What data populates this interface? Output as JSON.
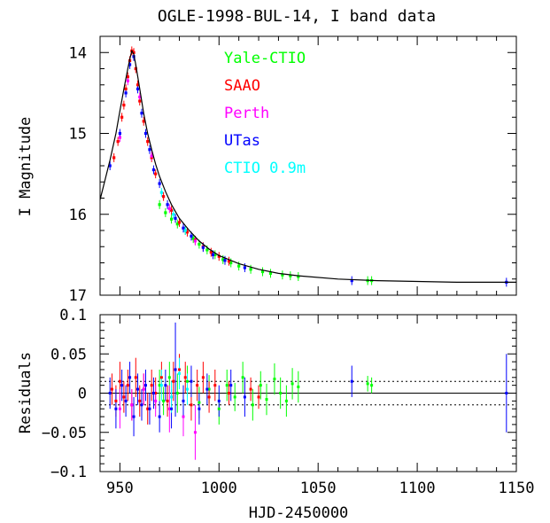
{
  "chart_data": [
    {
      "type": "scatter",
      "panel": "light curve",
      "title": "OGLE-1998-BUL-14, I band data",
      "xlabel": "",
      "ylabel": "I Magnitude",
      "xlim": [
        940,
        1150
      ],
      "ylim": [
        17,
        13.8
      ],
      "y_inverted": true,
      "x_ticks": [
        950,
        1000,
        1050,
        1100,
        1150
      ],
      "y_ticks": [
        14,
        15,
        16,
        17
      ],
      "y_tick_labels": [
        "14",
        "15",
        "16",
        "17"
      ],
      "legend_position": "top-center",
      "series": [
        {
          "name": "Yale-CTIO",
          "color": "#00ff00",
          "points": [
            [
              970,
              15.88
            ],
            [
              973,
              15.98
            ],
            [
              976,
              16.06
            ],
            [
              979,
              16.12
            ],
            [
              983,
              16.2
            ],
            [
              987,
              16.3
            ],
            [
              990,
              16.37
            ],
            [
              994,
              16.44
            ],
            [
              998,
              16.5
            ],
            [
              1002,
              16.56
            ],
            [
              1006,
              16.6
            ],
            [
              1010,
              16.64
            ],
            [
              1016,
              16.68
            ],
            [
              1022,
              16.71
            ],
            [
              1026,
              16.73
            ],
            [
              1032,
              16.75
            ],
            [
              1036,
              16.76
            ],
            [
              1040,
              16.77
            ],
            [
              1075,
              16.82
            ],
            [
              1077,
              16.82
            ]
          ]
        },
        {
          "name": "SAAO",
          "color": "#ff0000",
          "points": [
            [
              947,
              15.3
            ],
            [
              949,
              15.1
            ],
            [
              951,
              14.8
            ],
            [
              952,
              14.65
            ],
            [
              953,
              14.45
            ],
            [
              954,
              14.3
            ],
            [
              955,
              14.1
            ],
            [
              956,
              13.98
            ],
            [
              957,
              14.0
            ],
            [
              958,
              14.2
            ],
            [
              959,
              14.4
            ],
            [
              960,
              14.6
            ],
            [
              962,
              14.85
            ],
            [
              964,
              15.1
            ],
            [
              966,
              15.3
            ],
            [
              968,
              15.5
            ],
            [
              972,
              15.78
            ],
            [
              976,
              15.95
            ],
            [
              980,
              16.1
            ],
            [
              984,
              16.22
            ],
            [
              988,
              16.32
            ],
            [
              992,
              16.4
            ],
            [
              996,
              16.47
            ],
            [
              1000,
              16.52
            ],
            [
              1005,
              16.58
            ]
          ]
        },
        {
          "name": "Perth",
          "color": "#ff00ff",
          "points": [
            [
              950,
              15.05
            ],
            [
              954,
              14.35
            ],
            [
              960,
              14.55
            ],
            [
              966,
              15.28
            ],
            [
              975,
              15.93
            ],
            [
              982,
              16.17
            ],
            [
              988,
              16.33
            ]
          ]
        },
        {
          "name": "UTas",
          "color": "#0000ff",
          "points": [
            [
              945,
              15.4
            ],
            [
              950,
              15.0
            ],
            [
              953,
              14.5
            ],
            [
              955,
              14.15
            ],
            [
              957,
              14.05
            ],
            [
              959,
              14.45
            ],
            [
              961,
              14.75
            ],
            [
              963,
              15.0
            ],
            [
              965,
              15.2
            ],
            [
              967,
              15.45
            ],
            [
              970,
              15.62
            ],
            [
              974,
              15.88
            ],
            [
              978,
              16.05
            ],
            [
              982,
              16.17
            ],
            [
              986,
              16.27
            ],
            [
              992,
              16.41
            ],
            [
              997,
              16.5
            ],
            [
              1003,
              16.57
            ],
            [
              1013,
              16.66
            ],
            [
              1067,
              16.82
            ],
            [
              1145,
              16.84
            ]
          ]
        },
        {
          "name": "CTIO 0.9m",
          "color": "#00ffff",
          "points": [
            [
              971,
              15.73
            ],
            [
              977,
              16.0
            ],
            [
              983,
              16.2
            ]
          ]
        }
      ],
      "model_curve": {
        "name": "",
        "color": "#000000",
        "points": [
          [
            940,
            15.82
          ],
          [
            945,
            15.33
          ],
          [
            948,
            15.0
          ],
          [
            950,
            14.72
          ],
          [
            952,
            14.45
          ],
          [
            954,
            14.2
          ],
          [
            955,
            14.08
          ],
          [
            956,
            13.98
          ],
          [
            957,
            14.02
          ],
          [
            958,
            14.15
          ],
          [
            960,
            14.45
          ],
          [
            962,
            14.75
          ],
          [
            964,
            15.0
          ],
          [
            966,
            15.2
          ],
          [
            968,
            15.38
          ],
          [
            970,
            15.53
          ],
          [
            973,
            15.72
          ],
          [
            976,
            15.88
          ],
          [
            980,
            16.05
          ],
          [
            985,
            16.2
          ],
          [
            990,
            16.33
          ],
          [
            995,
            16.43
          ],
          [
            1000,
            16.51
          ],
          [
            1010,
            16.61
          ],
          [
            1020,
            16.68
          ],
          [
            1030,
            16.73
          ],
          [
            1040,
            16.76
          ],
          [
            1060,
            16.8
          ],
          [
            1080,
            16.82
          ],
          [
            1100,
            16.83
          ],
          [
            1120,
            16.84
          ],
          [
            1150,
            16.84
          ]
        ]
      }
    },
    {
      "type": "scatter",
      "panel": "residuals",
      "title": "",
      "xlabel": "HJD-2450000",
      "ylabel": "Residuals",
      "xlim": [
        940,
        1150
      ],
      "ylim": [
        -0.1,
        0.1
      ],
      "x_ticks": [
        950,
        1000,
        1050,
        1100,
        1150
      ],
      "x_tick_labels": [
        "950",
        "1000",
        "1050",
        "1100",
        "1150"
      ],
      "y_ticks": [
        -0.1,
        -0.05,
        0,
        0.05,
        0.1
      ],
      "y_tick_labels": [
        "−0.1",
        "−0.05",
        "0",
        "0.05",
        "0.1"
      ],
      "reference_lines": [
        0.015,
        0,
        -0.015
      ],
      "series": [
        {
          "name": "Yale-CTIO",
          "color": "#00ff00",
          "points": [
            [
              970,
              0.01,
              0.02
            ],
            [
              972,
              -0.01,
              0.018
            ],
            [
              975,
              0.02,
              0.02
            ],
            [
              979,
              0.0,
              0.025
            ],
            [
              984,
              0.015,
              0.02
            ],
            [
              990,
              -0.012,
              0.02
            ],
            [
              995,
              0.005,
              0.018
            ],
            [
              1000,
              -0.02,
              0.02
            ],
            [
              1004,
              0.01,
              0.02
            ],
            [
              1008,
              -0.005,
              0.018
            ],
            [
              1012,
              0.02,
              0.02
            ],
            [
              1017,
              -0.015,
              0.02
            ],
            [
              1021,
              0.01,
              0.018
            ],
            [
              1024,
              -0.008,
              0.02
            ],
            [
              1028,
              0.018,
              0.02
            ],
            [
              1031,
              0.0,
              0.02
            ],
            [
              1034,
              -0.01,
              0.02
            ],
            [
              1037,
              0.012,
              0.02
            ],
            [
              1040,
              0.008,
              0.02
            ],
            [
              1075,
              0.012,
              0.01
            ],
            [
              1077,
              0.01,
              0.01
            ]
          ]
        },
        {
          "name": "SAAO",
          "color": "#ff0000",
          "points": [
            [
              946,
              0.005,
              0.02
            ],
            [
              948,
              -0.01,
              0.02
            ],
            [
              950,
              0.015,
              0.025
            ],
            [
              952,
              -0.005,
              0.02
            ],
            [
              954,
              0.01,
              0.02
            ],
            [
              956,
              -0.015,
              0.02
            ],
            [
              958,
              0.02,
              0.025
            ],
            [
              960,
              -0.01,
              0.02
            ],
            [
              962,
              0.005,
              0.02
            ],
            [
              964,
              -0.02,
              0.02
            ],
            [
              966,
              0.01,
              0.02
            ],
            [
              968,
              0.0,
              0.02
            ],
            [
              971,
              0.02,
              0.02
            ],
            [
              974,
              -0.01,
              0.02
            ],
            [
              977,
              0.015,
              0.025
            ],
            [
              980,
              0.03,
              0.02
            ],
            [
              983,
              0.02,
              0.02
            ],
            [
              986,
              -0.015,
              0.02
            ],
            [
              989,
              0.01,
              0.02
            ],
            [
              992,
              0.02,
              0.02
            ],
            [
              995,
              -0.005,
              0.02
            ],
            [
              998,
              0.01,
              0.02
            ],
            [
              1005,
              0.0,
              0.015
            ],
            [
              1016,
              0.005,
              0.015
            ],
            [
              1020,
              -0.005,
              0.015
            ]
          ]
        },
        {
          "name": "Perth",
          "color": "#ff00ff",
          "points": [
            [
              950,
              -0.02,
              0.025
            ],
            [
              956,
              -0.015,
              0.02
            ],
            [
              962,
              0.005,
              0.02
            ],
            [
              968,
              -0.01,
              0.02
            ],
            [
              975,
              -0.02,
              0.03
            ],
            [
              982,
              -0.03,
              0.025
            ],
            [
              988,
              -0.05,
              0.035
            ]
          ]
        },
        {
          "name": "UTas",
          "color": "#0000ff",
          "points": [
            [
              945,
              0.0,
              0.02
            ],
            [
              948,
              -0.02,
              0.025
            ],
            [
              951,
              0.01,
              0.02
            ],
            [
              953,
              -0.01,
              0.02
            ],
            [
              955,
              0.02,
              0.02
            ],
            [
              957,
              -0.03,
              0.025
            ],
            [
              959,
              0.005,
              0.02
            ],
            [
              961,
              -0.015,
              0.02
            ],
            [
              963,
              0.01,
              0.02
            ],
            [
              965,
              -0.02,
              0.02
            ],
            [
              967,
              0.0,
              0.02
            ],
            [
              970,
              -0.03,
              0.02
            ],
            [
              973,
              0.01,
              0.02
            ],
            [
              976,
              -0.02,
              0.025
            ],
            [
              978,
              0.03,
              0.06
            ],
            [
              982,
              -0.01,
              0.02
            ],
            [
              986,
              0.015,
              0.02
            ],
            [
              990,
              -0.02,
              0.02
            ],
            [
              994,
              0.005,
              0.02
            ],
            [
              1000,
              -0.01,
              0.02
            ],
            [
              1006,
              0.01,
              0.02
            ],
            [
              1013,
              -0.005,
              0.025
            ],
            [
              1067,
              0.015,
              0.02
            ],
            [
              1145,
              0.0,
              0.05
            ]
          ]
        },
        {
          "name": "CTIO 0.9m",
          "color": "#00ffff",
          "points": [
            [
              971,
              0.01,
              0.02
            ],
            [
              976,
              -0.005,
              0.02
            ],
            [
              980,
              0.025,
              0.02
            ],
            [
              984,
              0.005,
              0.02
            ]
          ]
        }
      ]
    }
  ]
}
